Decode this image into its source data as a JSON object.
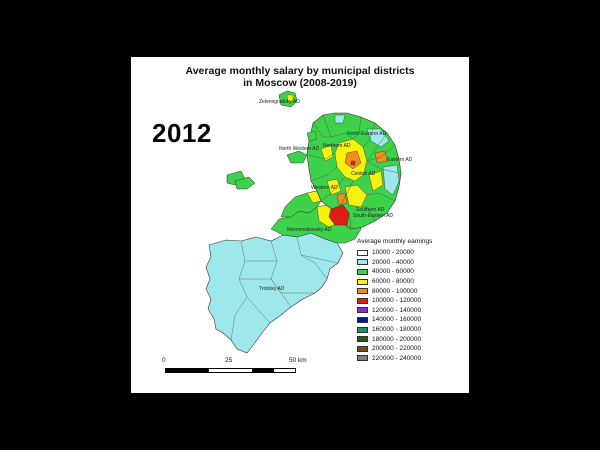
{
  "map": {
    "title_line1": "Average monthly salary by municipal districts",
    "title_line2": "in Moscow (2008-2019)",
    "year": "2012",
    "district_labels": [
      "Zelenogradsky AD",
      "North-Eastern AD",
      "North Western AD",
      "Northern AD",
      "Eastern AD",
      "Western AD",
      "Central AD",
      "Southern AD",
      "South-Eastern AD",
      "Novomoskovsky AD",
      "Troitsky AD"
    ],
    "legend": {
      "title": "Average monthly earnings",
      "items": [
        {
          "label": "10000 - 20000",
          "color": "#ffffff"
        },
        {
          "label": "20000 - 40000",
          "color": "#9ee8ec"
        },
        {
          "label": "40000 - 60000",
          "color": "#3ed24a"
        },
        {
          "label": "60000 - 80000",
          "color": "#f4f20e"
        },
        {
          "label": "80000 - 100000",
          "color": "#f28e1e"
        },
        {
          "label": "100000 - 120000",
          "color": "#e01e16"
        },
        {
          "label": "120000 - 140000",
          "color": "#8a2bd8"
        },
        {
          "label": "140000 - 160000",
          "color": "#0a1a8c"
        },
        {
          "label": "160000 - 180000",
          "color": "#2a8a6a"
        },
        {
          "label": "180000 - 200000",
          "color": "#1f5a1f"
        },
        {
          "label": "200000 - 220000",
          "color": "#7a4a14"
        },
        {
          "label": "220000 - 240000",
          "color": "#8c7a80"
        }
      ]
    },
    "scale": {
      "labels": [
        "0",
        "25",
        "50 km"
      ]
    }
  }
}
